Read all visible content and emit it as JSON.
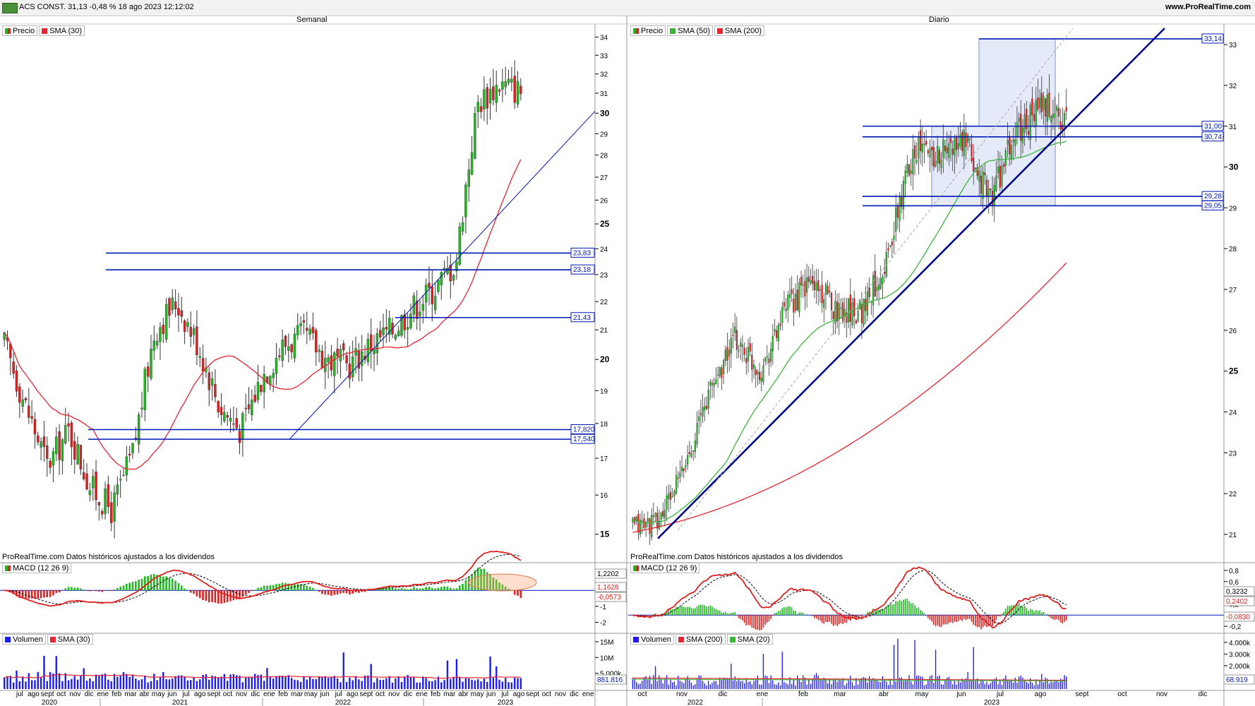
{
  "header": {
    "title": "ACS CONST. 31,13 -0,48 % 18 ago 2023 12:12:02",
    "url": "www.ProRealTime.com"
  },
  "colors": {
    "up": "#22b822",
    "down": "#e02020",
    "sma_red": "#e8242e",
    "sma_green": "#3cb43c",
    "line": "#0018b4",
    "volume": "#1a1aff"
  },
  "weekly": {
    "title": "Semanal",
    "legend": [
      "Precio",
      "SMA (30)"
    ],
    "footer": "ProRealTime.com  Datos históricos ajustados a los dividendos",
    "macd_legend": "MACD (12 26 9)",
    "volume_legend": [
      "Volumen",
      "SMA (30)"
    ],
    "price_ticks": [
      "15",
      "16",
      "17",
      "18",
      "19",
      "20",
      "21",
      "22",
      "23",
      "24",
      "25",
      "26",
      "27",
      "28",
      "29",
      "30",
      "31",
      "32",
      "33",
      "34"
    ],
    "level_labels": [
      "23,83",
      "23,18",
      "21,43",
      "17,820",
      "17,540"
    ],
    "macd_ticks": [
      "-2",
      "-1",
      "1"
    ],
    "macd_values": [
      "1,2202",
      "1,1628",
      "-0,0573"
    ],
    "vol_ticks": [
      "5.000k",
      "10M",
      "15M"
    ],
    "vol_value": "881.816",
    "x_months": [
      "jul",
      "ago",
      "sept",
      "oct",
      "nov",
      "dic",
      "ene",
      "feb",
      "mar",
      "abr",
      "may",
      "jun",
      "jul",
      "ago",
      "sept",
      "oct",
      "nov",
      "dic",
      "ene",
      "feb",
      "mar",
      "may",
      "jun",
      "jul",
      "ago",
      "sept",
      "oct",
      "nov",
      "dic",
      "ene",
      "feb",
      "mar",
      "abr",
      "may",
      "jun",
      "jul",
      "ago",
      "sept",
      "oct",
      "nov",
      "dic",
      "ene"
    ],
    "x_years": [
      "2020",
      "2021",
      "2022",
      "2023"
    ]
  },
  "daily": {
    "title": "Diario",
    "legend": [
      "Precio",
      "SMA (50)",
      "SMA (200)"
    ],
    "footer": "ProRealTime.com  Datos históricos ajustados a los dividendos",
    "macd_legend": "MACD (12 26 9)",
    "volume_legend": [
      "Volumen",
      "SMA (200)",
      "SMA (20)"
    ],
    "price_ticks": [
      "21",
      "22",
      "23",
      "24",
      "25",
      "26",
      "27",
      "28",
      "29",
      "30",
      "31",
      "32",
      "33"
    ],
    "level_labels": [
      "33,14",
      "31,00",
      "30,74",
      "29,28",
      "29,05"
    ],
    "macd_ticks": [
      "-0,2",
      "0,2",
      "0,4",
      "0,6",
      "0,8"
    ],
    "macd_values": [
      "0,3232",
      "0,2402",
      "-0,0830"
    ],
    "vol_ticks": [
      "1.000k",
      "2.000k",
      "3.000k",
      "4.000k"
    ],
    "vol_value": "68.919",
    "x_months": [
      "oct",
      "nov",
      "dic",
      "ene",
      "feb",
      "mar",
      "abr",
      "may",
      "jun",
      "jul",
      "ago",
      "sept",
      "oct",
      "nov",
      "dic"
    ],
    "x_years": [
      "2022",
      "2023"
    ]
  },
  "chart_data": [
    {
      "type": "candlestick",
      "title": "Semanal",
      "ylim": [
        14.6,
        34.5
      ],
      "y_scale": "log",
      "series": [
        {
          "name": "Precio",
          "path_close": [
            20.5,
            18.5,
            16.8,
            17.8,
            16.2,
            15.6,
            17.2,
            21.0,
            22.0,
            20.5,
            18.5,
            17.8,
            19.5,
            20.5,
            20.8,
            20.0,
            19.8,
            20.5,
            21.0,
            21.8,
            22.5,
            23.5,
            30.5,
            31.5,
            31.13
          ]
        },
        {
          "name": "SMA (30)"
        }
      ],
      "levels": [
        23.83,
        23.18,
        21.43,
        17.82,
        17.54
      ]
    },
    {
      "type": "candlestick",
      "title": "Diario",
      "ylim": [
        20.6,
        33.4
      ],
      "series": [
        {
          "name": "Precio",
          "path_close": [
            21.2,
            21.3,
            22.6,
            24.5,
            25.8,
            25.0,
            26.5,
            27.2,
            26.5,
            26.5,
            27.8,
            30.5,
            30.3,
            30.6,
            29.2,
            30.8,
            31.5,
            31.13
          ]
        },
        {
          "name": "SMA (50)"
        },
        {
          "name": "SMA (200)"
        }
      ],
      "levels": [
        33.14,
        31.0,
        30.74,
        29.28,
        29.05
      ]
    }
  ]
}
